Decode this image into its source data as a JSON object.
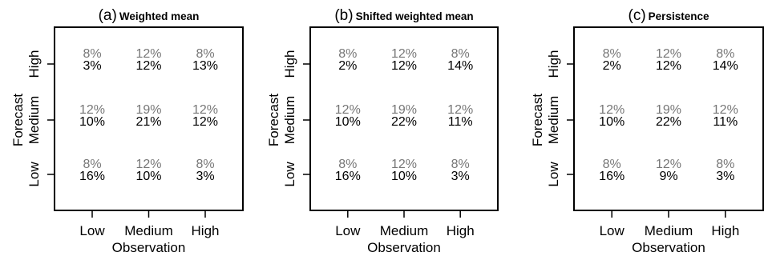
{
  "chart_data": [
    {
      "type": "table",
      "panel_label": "(a)",
      "title": "Weighted mean",
      "xlabel": "Observation",
      "ylabel_outer": "Forecast",
      "x_categories": [
        "Low",
        "Medium",
        "High"
      ],
      "y_categories": [
        "High",
        "Medium",
        "Low"
      ],
      "expected": [
        [
          "8%",
          "12%",
          "8%"
        ],
        [
          "12%",
          "19%",
          "12%"
        ],
        [
          "8%",
          "12%",
          "8%"
        ]
      ],
      "observed": [
        [
          "3%",
          "12%",
          "13%"
        ],
        [
          "10%",
          "21%",
          "12%"
        ],
        [
          "16%",
          "10%",
          "3%"
        ]
      ]
    },
    {
      "type": "table",
      "panel_label": "(b)",
      "title": "Shifted weighted mean",
      "xlabel": "Observation",
      "ylabel_outer": "Forecast",
      "x_categories": [
        "Low",
        "Medium",
        "High"
      ],
      "y_categories": [
        "High",
        "Medium",
        "Low"
      ],
      "expected": [
        [
          "8%",
          "12%",
          "8%"
        ],
        [
          "12%",
          "19%",
          "12%"
        ],
        [
          "8%",
          "12%",
          "8%"
        ]
      ],
      "observed": [
        [
          "2%",
          "12%",
          "14%"
        ],
        [
          "10%",
          "22%",
          "11%"
        ],
        [
          "16%",
          "10%",
          "3%"
        ]
      ]
    },
    {
      "type": "table",
      "panel_label": "(c)",
      "title": "Persistence",
      "xlabel": "Observation",
      "ylabel_outer": "Forecast",
      "x_categories": [
        "Low",
        "Medium",
        "High"
      ],
      "y_categories": [
        "High",
        "Medium",
        "Low"
      ],
      "expected": [
        [
          "8%",
          "12%",
          "8%"
        ],
        [
          "12%",
          "19%",
          "12%"
        ],
        [
          "8%",
          "12%",
          "8%"
        ]
      ],
      "observed": [
        [
          "2%",
          "12%",
          "14%"
        ],
        [
          "10%",
          "22%",
          "11%"
        ],
        [
          "16%",
          "9%",
          "3%"
        ]
      ]
    }
  ],
  "colors": {
    "expected_text": "#777777",
    "observed_text": "#000000",
    "frame": "#000000"
  }
}
